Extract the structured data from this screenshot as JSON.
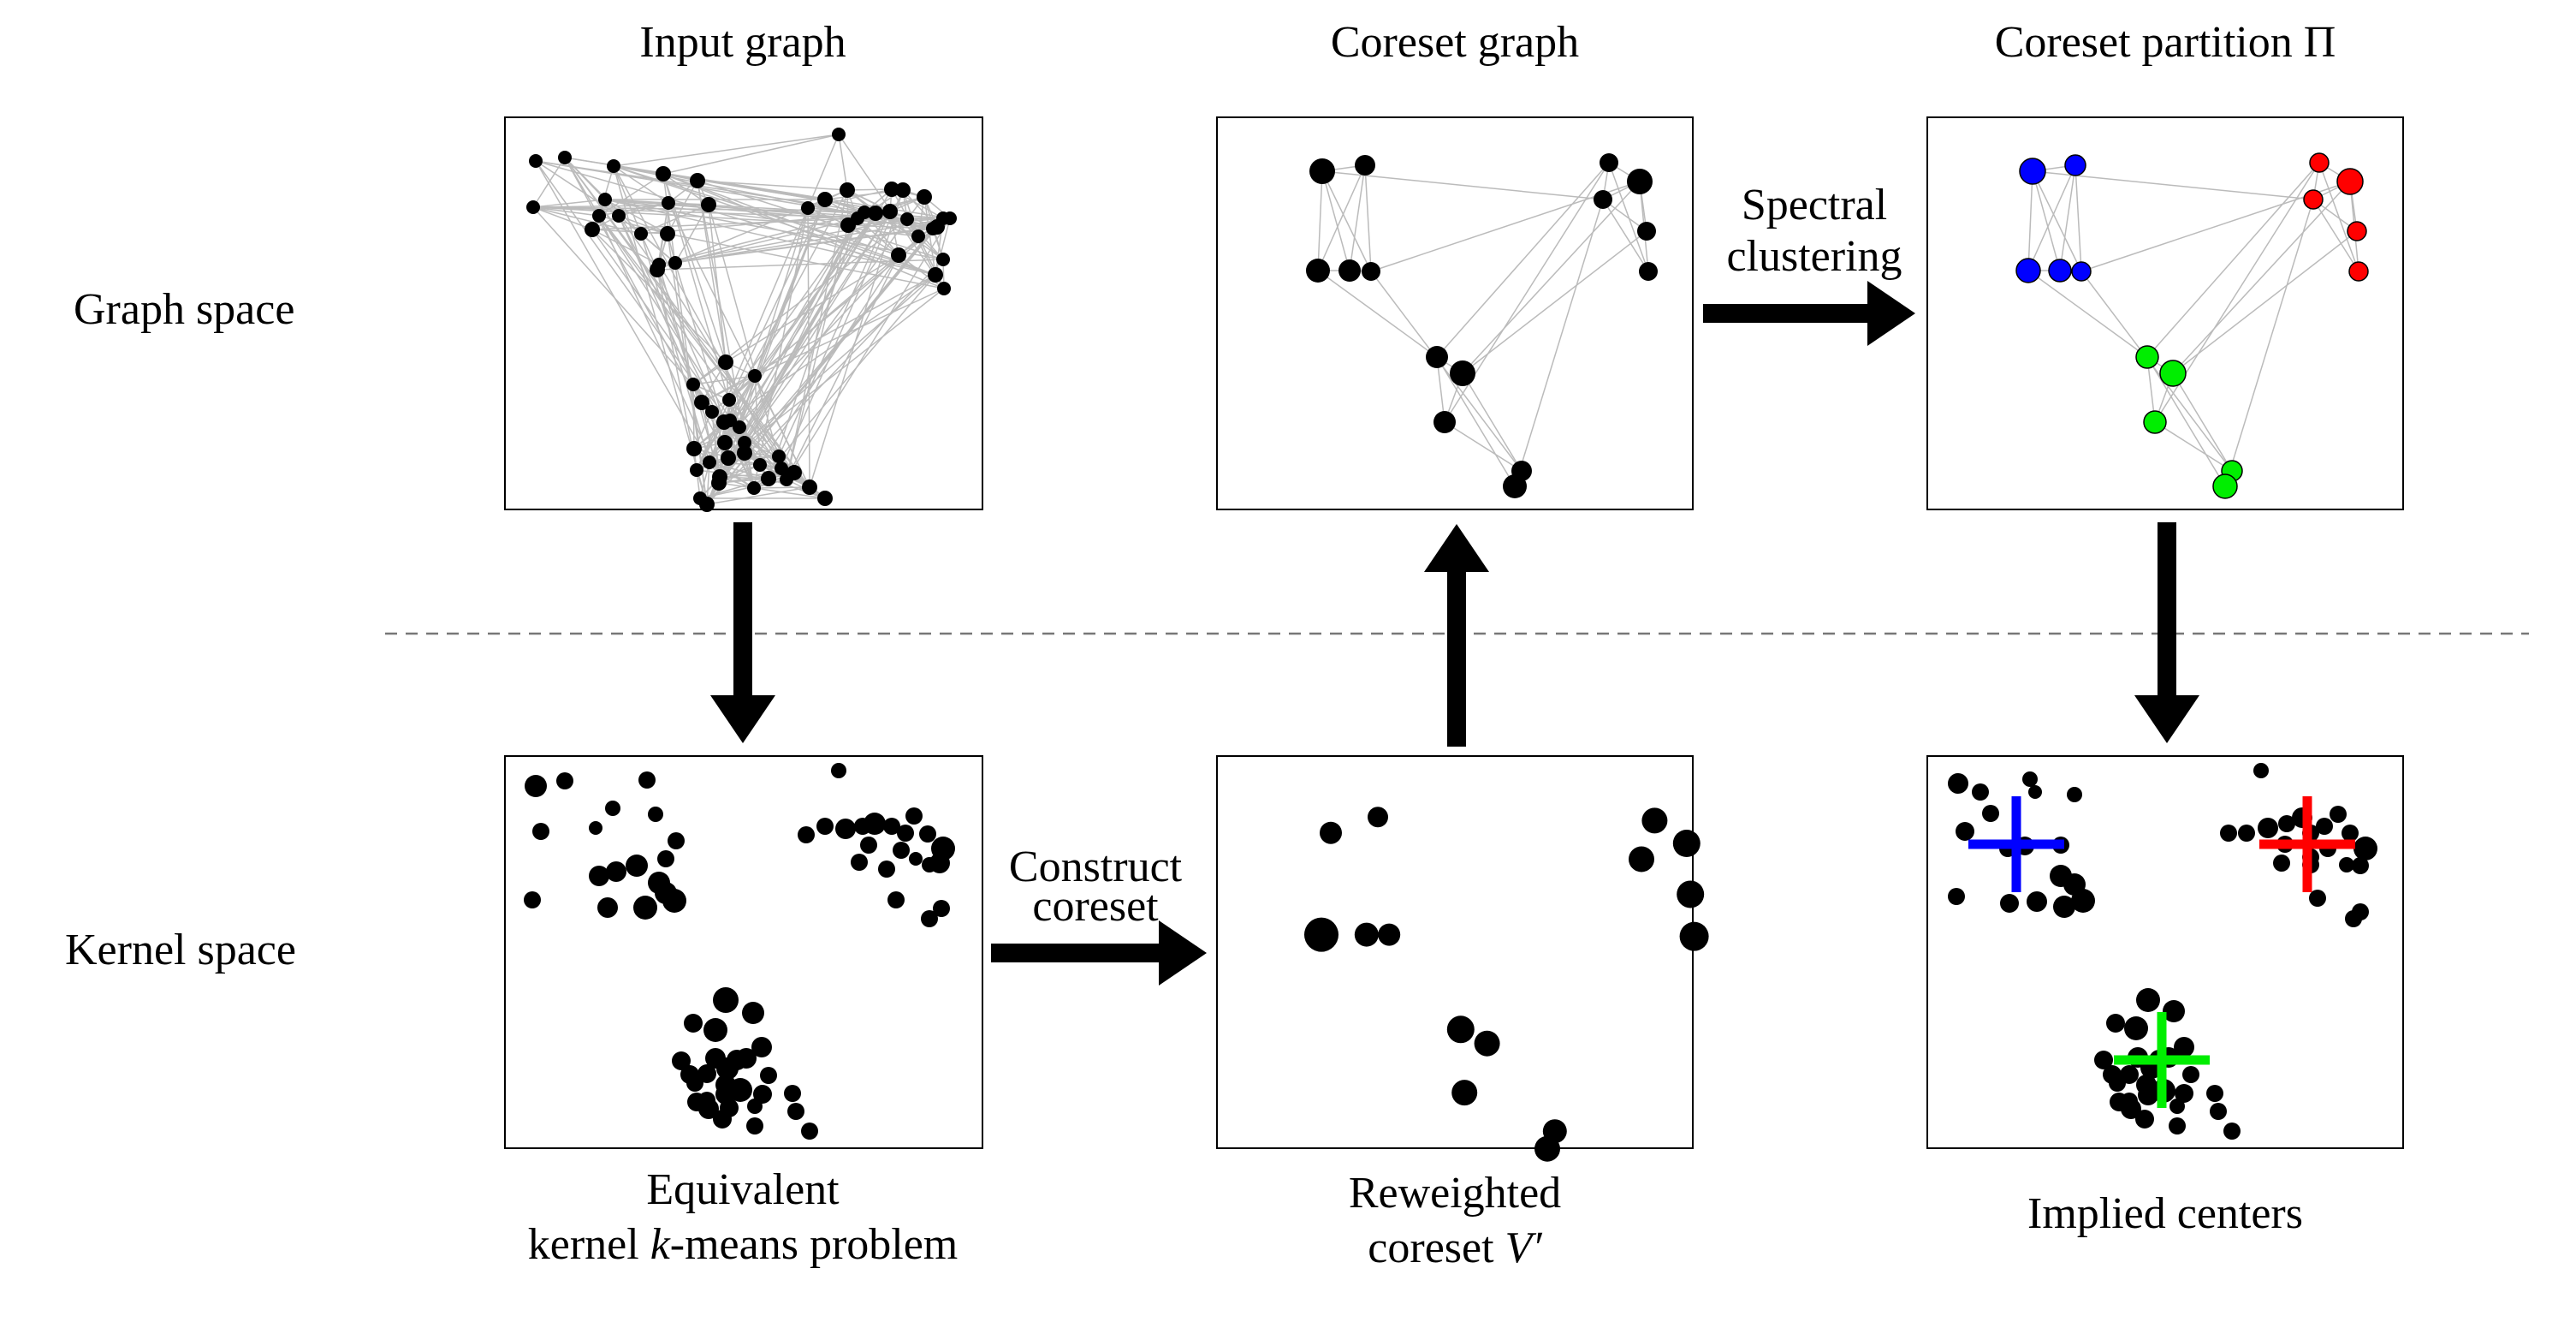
{
  "titles": {
    "input_graph": "Input graph",
    "coreset_graph": "Coreset graph",
    "coreset_partition": "Coreset partition Π"
  },
  "row_labels": {
    "graph_space": "Graph space",
    "kernel_space": "Kernel space"
  },
  "arrow_labels": {
    "spectral_line1": "Spectral",
    "spectral_line2": "clustering",
    "construct_line1": "Construct",
    "construct_line2": "coreset"
  },
  "captions": {
    "equivalent_line1": "Equivalent",
    "equivalent_line2_pre": "kernel ",
    "equivalent_line2_var": "k",
    "equivalent_line2_post": "-means problem",
    "reweighted_line1": "Reweighted",
    "reweighted_line2_pre": "coreset ",
    "reweighted_line2_var": "V′",
    "implied_centers": "Implied centers"
  },
  "colors": {
    "cluster_a": "#0000ff",
    "cluster_b": "#ff0000",
    "cluster_c": "#00ee00",
    "edge": "#bbbbbb",
    "node": "#000000",
    "divider": "#777777"
  }
}
